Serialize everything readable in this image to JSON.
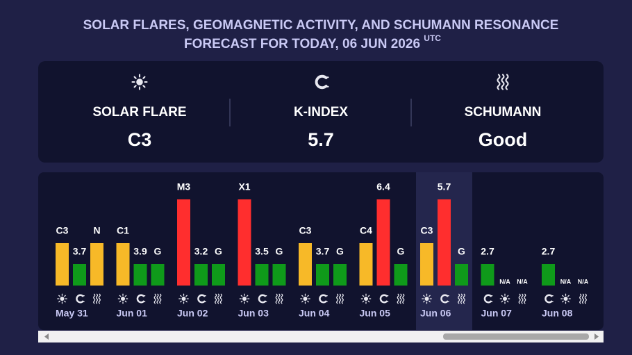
{
  "header": {
    "title_line1": "SOLAR FLARES, GEOMAGNETIC ACTIVITY, AND SCHUMANN RESONANCE",
    "title_line2": "FORECAST FOR TODAY, 06 JUN 2026",
    "timezone": "UTC"
  },
  "summary": [
    {
      "label": "SOLAR FLARE",
      "value": "C3",
      "color": "#f7b928"
    },
    {
      "label": "K-INDEX",
      "value": "5.7",
      "color": "#ff3030"
    },
    {
      "label": "SCHUMANN",
      "value": "Good",
      "color": "#1aa31a"
    }
  ],
  "days": [
    {
      "date": "May 31",
      "flare": "C3",
      "kindex": 3.7,
      "schumann": "N"
    },
    {
      "date": "Jun 01",
      "flare": "C1",
      "kindex": 3.9,
      "schumann": "G"
    },
    {
      "date": "Jun 02",
      "flare": "M3",
      "kindex": 3.2,
      "schumann": "G"
    },
    {
      "date": "Jun 03",
      "flare": "X1",
      "kindex": 3.5,
      "schumann": "G"
    },
    {
      "date": "Jun 04",
      "flare": "C3",
      "kindex": 3.7,
      "schumann": "G"
    },
    {
      "date": "Jun 05",
      "flare": "C4",
      "kindex": 6.4,
      "schumann": "G"
    },
    {
      "date": "Jun 06",
      "flare": "C3",
      "kindex": 5.7,
      "schumann": "G"
    },
    {
      "date": "Jun 07",
      "flare": "N/A",
      "kindex": 2.7,
      "schumann": "N/A"
    },
    {
      "date": "Jun 08",
      "flare": "N/A",
      "kindex": 2.7,
      "schumann": "N/A"
    }
  ]
}
